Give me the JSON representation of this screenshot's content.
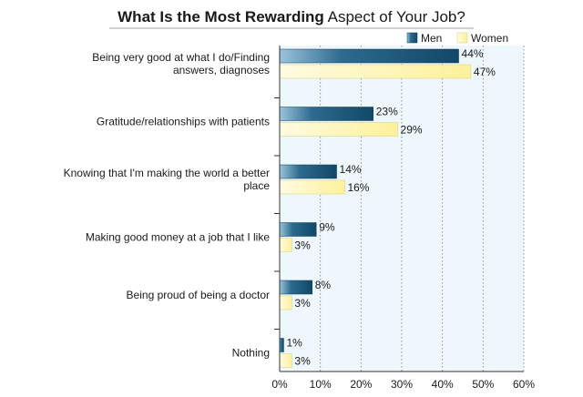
{
  "chart_data": {
    "type": "bar",
    "orientation": "horizontal",
    "title_bold": "What Is the Most Rewarding",
    "title_rest": " Aspect of Your Job?",
    "categories": [
      [
        "Being very good at what I do/Finding",
        "answers, diagnoses"
      ],
      [
        "Gratitude/relationships with patients"
      ],
      [
        "Knowing that I'm making the world a better",
        "place"
      ],
      [
        "Making good money at a job that I like"
      ],
      [
        "Being proud of being a doctor"
      ],
      [
        "Nothing"
      ]
    ],
    "series": [
      {
        "name": "Men",
        "color": "#1c5a7e",
        "values": [
          44,
          23,
          14,
          9,
          8,
          1
        ]
      },
      {
        "name": "Women",
        "color": "#fdf4a6",
        "values": [
          47,
          29,
          16,
          3,
          3,
          3
        ]
      }
    ],
    "value_suffix": "%",
    "xlim": [
      0,
      60
    ],
    "xticks": [
      0,
      10,
      20,
      30,
      40,
      50,
      60
    ],
    "tick_suffix": "%",
    "grid": true,
    "legend_position": "top-right",
    "plot_background": "#eef7fc"
  }
}
